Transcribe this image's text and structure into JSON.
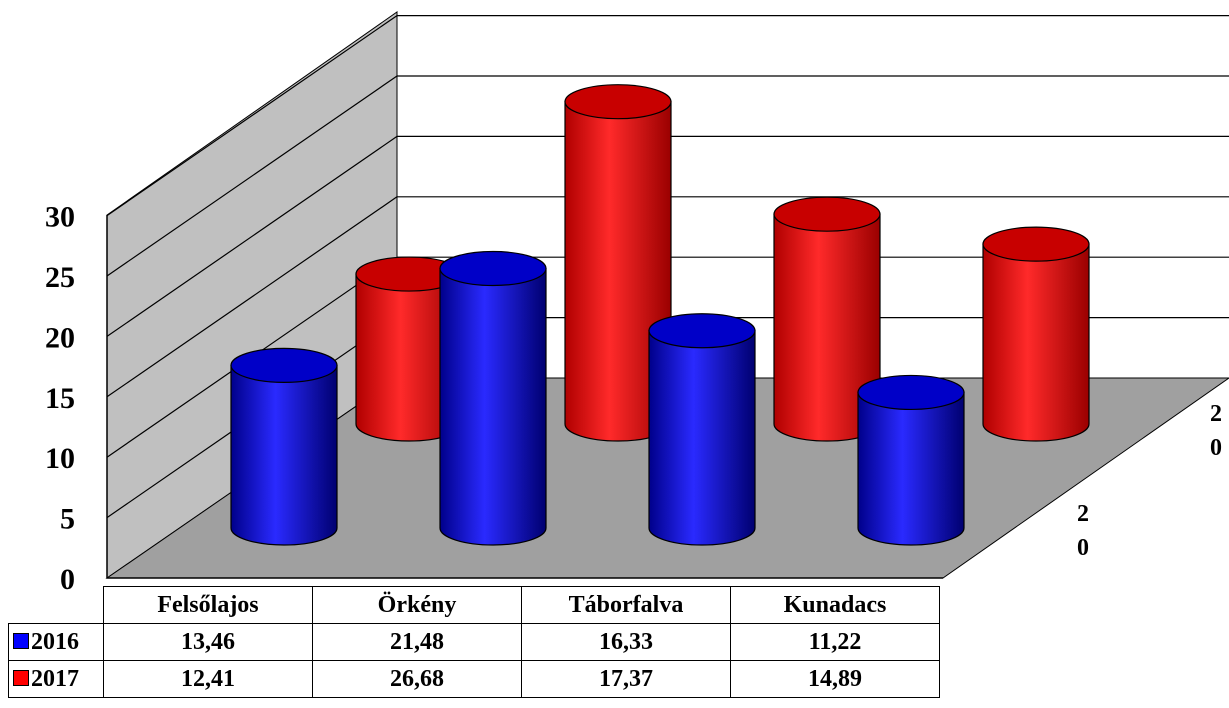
{
  "chart_data": {
    "type": "bar",
    "style": "3d-cylinder",
    "categories": [
      "Felsőlajos",
      "Örkény",
      "Táborfalva",
      "Kunadacs"
    ],
    "series": [
      {
        "name": "2016",
        "color": "#0000ff",
        "values": [
          13.46,
          21.48,
          16.33,
          11.22
        ]
      },
      {
        "name": "2017",
        "color": "#ff0000",
        "values": [
          12.41,
          26.68,
          17.37,
          14.89
        ]
      }
    ],
    "series_values_text": [
      [
        "13,46",
        "21,48",
        "16,33",
        "11,22"
      ],
      [
        "12,41",
        "26,68",
        "17,37",
        "14,89"
      ]
    ],
    "yticks": [
      "0",
      "5",
      "10",
      "15",
      "20",
      "25",
      "30"
    ],
    "ylim": [
      0,
      30
    ],
    "depth_tick_labels": [
      [
        "2",
        "0"
      ],
      [
        "2",
        "0"
      ]
    ],
    "grid": true,
    "legend": "data-table-below",
    "wall_color": "#c0c0c0",
    "floor_color": "#a0a0a0"
  }
}
